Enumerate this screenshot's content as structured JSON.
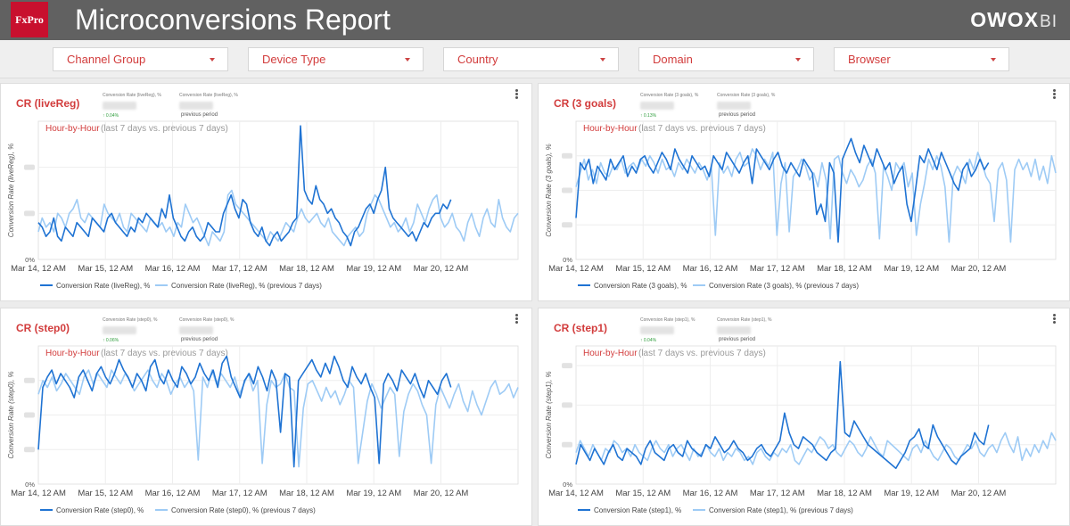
{
  "header": {
    "brand": "FxPro",
    "title": "Microconversions Report",
    "vendor": "OWOX",
    "vendor_suffix": "BI"
  },
  "filters": [
    {
      "label": "Channel Group"
    },
    {
      "label": "Device Type"
    },
    {
      "label": "Country"
    },
    {
      "label": "Domain"
    },
    {
      "label": "Browser"
    }
  ],
  "colors": {
    "accent": "#d23c3c",
    "header_bg": "#616161",
    "current_series": "#1f73d3",
    "previous_series": "#9ecbf5"
  },
  "icons": {
    "menu": "kebab-menu-icon",
    "dropdown": "chevron-down-icon"
  },
  "panels": [
    {
      "title": "CR (liveReg)",
      "kpi1_label": "Conversion Rate (liveReg), %",
      "kpi1_delta": "↑ 0.04%",
      "kpi2_label": "Conversion Rate (liveReg), %",
      "kpi2_sub": "previous period",
      "subtitle_main": "Hour-by-Hour",
      "subtitle_note": "(last 7 days vs. previous 7 days)",
      "ylabel": "Conversion Rate (liveReg), %",
      "legend_current": "Conversion Rate (liveReg), %",
      "legend_previous": "Conversion Rate (liveReg), % (previous 7 days)"
    },
    {
      "title": "CR (3 goals)",
      "kpi1_label": "Conversion Rate (3 goals), %",
      "kpi1_delta": "↑ 0.13%",
      "kpi2_label": "Conversion Rate (3 goals), %",
      "kpi2_sub": "previous period",
      "subtitle_main": "Hour-by-Hour",
      "subtitle_note": "(last 7 days vs. previous 7 days)",
      "ylabel": "Conversion Rate (3 goals), %",
      "legend_current": "Conversion Rate (3 goals), %",
      "legend_previous": "Conversion Rate (3 goals), % (previous 7 days)"
    },
    {
      "title": "CR (step0)",
      "kpi1_label": "Conversion Rate (step0), %",
      "kpi1_delta": "↑ 0.06%",
      "kpi2_label": "Conversion Rate (step0), %",
      "kpi2_sub": "previous period",
      "subtitle_main": "Hour-by-Hour",
      "subtitle_note": "(last 7 days vs. previous 7 days)",
      "ylabel": "Conversion Rate (step0), %",
      "legend_current": "Conversion Rate (step0), %",
      "legend_previous": "Conversion Rate (step0), % (previous 7 days)"
    },
    {
      "title": "CR (step1)",
      "kpi1_label": "Conversion Rate (step1), %",
      "kpi1_delta": "↑ 0.04%",
      "kpi2_label": "Conversion Rate (step1), %",
      "kpi2_sub": "previous period",
      "subtitle_main": "Hour-by-Hour",
      "subtitle_note": "(last 7 days vs. previous 7 days)",
      "ylabel": "Conversion Rate (step1), %",
      "legend_current": "Conversion Rate (step1), %",
      "legend_previous": "Conversion Rate (step1), % (previous 7 days)"
    }
  ],
  "chart_data": [
    {
      "type": "line",
      "x_ticks": [
        "Mar 14, 12 AM",
        "Mar 15, 12 AM",
        "Mar 16, 12 AM",
        "Mar 17, 12 AM",
        "Mar 18, 12 AM",
        "Mar 19, 12 AM",
        "Mar 20, 12 AM"
      ],
      "y_ticks": [
        "0%"
      ],
      "ylim": [
        0,
        3
      ],
      "series": [
        {
          "name": "Conversion Rate (liveReg), %",
          "values": [
            0.8,
            0.7,
            0.5,
            0.6,
            0.9,
            0.5,
            0.4,
            0.7,
            0.6,
            0.5,
            0.8,
            0.7,
            0.6,
            0.5,
            0.9,
            0.8,
            0.7,
            0.6,
            0.9,
            1.0,
            0.8,
            0.7,
            0.6,
            0.5,
            0.7,
            0.6,
            0.9,
            0.8,
            1.0,
            0.9,
            0.8,
            0.7,
            1.1,
            0.9,
            1.4,
            0.9,
            0.7,
            0.5,
            0.4,
            0.6,
            0.7,
            0.5,
            0.4,
            0.5,
            0.8,
            0.7,
            0.6,
            0.6,
            1.0,
            1.2,
            1.4,
            1.1,
            0.9,
            1.3,
            1.2,
            0.8,
            0.6,
            0.5,
            0.7,
            0.4,
            0.3,
            0.5,
            0.6,
            0.4,
            0.5,
            0.6,
            0.8,
            0.9,
            2.9,
            1.5,
            1.3,
            1.2,
            1.6,
            1.3,
            1.2,
            1.0,
            1.1,
            0.9,
            0.8,
            0.6,
            0.5,
            0.3,
            0.6,
            0.7,
            0.9,
            1.1,
            1.2,
            1.0,
            1.3,
            1.5,
            2.0,
            1.1,
            0.9,
            0.8,
            0.7,
            0.6,
            0.5,
            0.6,
            0.4,
            0.6,
            0.8,
            0.7,
            0.9,
            1.0,
            1.0,
            1.2,
            1.1,
            1.3
          ]
        },
        {
          "name": "Conversion Rate (liveReg), % (previous 7 days)",
          "values": [
            0.6,
            0.9,
            0.7,
            0.8,
            0.6,
            1.0,
            0.9,
            0.7,
            1.0,
            1.1,
            1.3,
            0.9,
            0.8,
            1.0,
            0.9,
            0.8,
            0.7,
            1.2,
            1.0,
            0.9,
            0.8,
            1.0,
            0.7,
            0.6,
            1.0,
            0.9,
            0.8,
            0.7,
            0.6,
            0.9,
            0.8,
            0.7,
            0.8,
            0.6,
            0.7,
            0.5,
            0.8,
            0.7,
            1.2,
            1.0,
            0.8,
            0.9,
            0.7,
            0.5,
            0.3,
            0.6,
            0.5,
            0.4,
            0.6,
            1.4,
            1.5,
            1.2,
            1.1,
            1.0,
            0.9,
            0.8,
            0.7,
            0.6,
            0.5,
            0.4,
            0.6,
            0.5,
            0.4,
            0.6,
            0.8,
            0.7,
            0.6,
            0.9,
            1.1,
            0.9,
            0.8,
            0.9,
            1.0,
            0.8,
            0.7,
            0.9,
            0.6,
            0.5,
            0.4,
            0.3,
            0.5,
            0.6,
            0.7,
            0.5,
            0.6,
            1.0,
            1.2,
            1.4,
            1.3,
            1.1,
            0.9,
            0.7,
            0.8,
            0.6,
            0.7,
            0.9,
            0.6,
            0.8,
            1.2,
            1.0,
            0.8,
            1.1,
            1.3,
            1.4,
            0.9,
            0.7,
            0.8,
            1.0,
            0.7,
            0.6,
            0.4,
            0.8,
            1.0,
            0.7,
            0.5,
            0.9,
            1.1,
            0.8,
            0.7,
            1.3,
            0.9,
            0.7,
            0.6,
            0.9,
            1.0
          ]
        }
      ]
    },
    {
      "type": "line",
      "x_ticks": [
        "Mar 14, 12 AM",
        "Mar 15, 12 AM",
        "Mar 16, 12 AM",
        "Mar 17, 12 AM",
        "Mar 18, 12 AM",
        "Mar 19, 12 AM",
        "Mar 20, 12 AM"
      ],
      "y_ticks": [
        "0%"
      ],
      "ylim": [
        0,
        4
      ],
      "series": [
        {
          "name": "Conversion Rate (3 goals), %",
          "values": [
            1.2,
            2.8,
            2.6,
            2.9,
            2.2,
            2.7,
            2.5,
            2.3,
            2.9,
            2.6,
            2.8,
            3.0,
            2.4,
            2.7,
            2.5,
            2.9,
            3.0,
            2.7,
            2.5,
            2.8,
            3.1,
            2.9,
            2.6,
            3.2,
            2.9,
            2.7,
            2.5,
            3.0,
            2.8,
            2.6,
            2.7,
            2.4,
            3.0,
            2.8,
            2.6,
            3.1,
            2.9,
            2.7,
            2.5,
            2.8,
            3.0,
            2.2,
            3.2,
            3.0,
            2.8,
            2.6,
            2.9,
            3.1,
            2.7,
            2.5,
            2.8,
            2.6,
            2.4,
            2.9,
            2.7,
            2.5,
            1.3,
            1.6,
            1.1,
            2.8,
            2.5,
            0.5,
            2.9,
            3.2,
            3.5,
            3.1,
            2.8,
            3.3,
            3.0,
            2.7,
            3.2,
            2.9,
            2.6,
            2.8,
            2.2,
            2.5,
            2.7,
            1.6,
            1.1,
            2.0,
            3.0,
            2.8,
            3.2,
            2.9,
            2.6,
            3.1,
            2.8,
            2.5,
            2.2,
            2.0,
            2.6,
            2.8,
            2.4,
            2.6,
            2.9,
            2.6,
            2.8
          ]
        },
        {
          "name": "Conversion Rate (3 goals), % (previous 7 days)",
          "values": [
            2.1,
            2.5,
            2.9,
            2.3,
            2.6,
            2.2,
            2.8,
            2.5,
            2.4,
            2.7,
            2.6,
            2.9,
            2.5,
            2.7,
            2.8,
            2.6,
            2.9,
            2.7,
            3.0,
            2.8,
            2.5,
            2.9,
            2.6,
            2.7,
            2.4,
            2.8,
            2.6,
            2.9,
            2.7,
            2.5,
            2.8,
            2.6,
            2.3,
            2.7,
            0.7,
            2.8,
            2.5,
            2.7,
            2.4,
            2.9,
            3.1,
            2.7,
            2.8,
            3.2,
            3.0,
            2.6,
            2.9,
            2.7,
            3.1,
            0.7,
            2.2,
            2.8,
            0.8,
            2.4,
            2.6,
            2.9,
            2.7,
            2.3,
            2.5,
            2.1,
            2.8,
            2.3,
            0.6,
            2.9,
            3.0,
            2.5,
            2.2,
            2.6,
            2.4,
            2.1,
            2.3,
            2.7,
            2.9,
            2.5,
            0.6,
            2.7,
            2.4,
            2.0,
            2.8,
            2.6,
            2.8,
            2.1,
            2.5,
            0.7,
            1.6,
            2.2,
            2.9,
            2.6,
            3.0,
            2.7,
            2.1,
            0.5,
            2.4,
            2.7,
            2.5,
            2.2,
            2.9,
            2.6,
            3.1,
            2.8,
            2.4,
            2.2,
            1.1,
            2.6,
            2.8,
            2.3,
            0.5,
            2.6,
            2.9,
            2.6,
            2.8,
            2.4,
            2.9,
            2.3,
            2.7,
            2.2,
            3.0,
            2.5
          ]
        }
      ]
    },
    {
      "type": "line",
      "x_ticks": [
        "Mar 14, 12 AM",
        "Mar 15, 12 AM",
        "Mar 16, 12 AM",
        "Mar 17, 12 AM",
        "Mar 18, 12 AM",
        "Mar 19, 12 AM",
        "Mar 20, 12 AM"
      ],
      "y_ticks": [
        "0%"
      ],
      "ylim": [
        0,
        4
      ],
      "series": [
        {
          "name": "Conversion Rate (step0), %",
          "values": [
            1.0,
            2.8,
            3.1,
            3.3,
            2.9,
            3.2,
            3.0,
            2.8,
            2.5,
            3.1,
            3.3,
            3.0,
            2.7,
            3.2,
            3.4,
            3.1,
            2.9,
            3.2,
            3.6,
            3.3,
            3.1,
            2.8,
            3.2,
            3.0,
            2.7,
            3.4,
            3.6,
            3.1,
            2.9,
            3.3,
            3.0,
            2.8,
            3.4,
            3.2,
            2.9,
            3.1,
            3.5,
            3.2,
            3.0,
            3.3,
            2.8,
            3.5,
            3.7,
            3.1,
            2.8,
            2.5,
            3.0,
            3.2,
            2.9,
            3.4,
            3.1,
            2.7,
            3.3,
            3.0,
            1.5,
            3.2,
            3.1,
            0.5,
            3.0,
            3.2,
            3.4,
            3.6,
            3.3,
            3.1,
            3.5,
            3.2,
            3.7,
            3.4,
            3.0,
            2.8,
            3.4,
            3.1,
            2.9,
            3.2,
            2.8,
            2.5,
            0.6,
            2.9,
            3.2,
            3.0,
            2.7,
            3.3,
            3.1,
            2.9,
            3.2,
            2.8,
            2.5,
            3.0,
            2.8,
            2.6,
            3.0,
            3.2,
            2.8
          ]
        },
        {
          "name": "Conversion Rate (step0), % (previous 7 days)",
          "values": [
            2.6,
            3.0,
            2.8,
            3.1,
            2.7,
            2.9,
            3.2,
            3.0,
            2.8,
            2.6,
            3.1,
            3.3,
            2.9,
            3.2,
            3.0,
            2.8,
            3.3,
            3.1,
            2.9,
            3.2,
            3.0,
            2.7,
            2.9,
            3.1,
            3.3,
            3.0,
            2.8,
            3.2,
            3.0,
            2.6,
            2.9,
            3.1,
            2.8,
            3.0,
            2.7,
            0.7,
            3.1,
            2.8,
            3.3,
            2.9,
            3.2,
            3.0,
            2.8,
            3.1,
            2.6,
            2.9,
            3.2,
            2.7,
            3.0,
            0.6,
            2.3,
            3.0,
            2.8,
            2.9,
            3.2,
            2.8,
            2.7,
            0.5,
            2.2,
            2.9,
            3.0,
            2.7,
            2.4,
            2.8,
            2.5,
            2.7,
            2.3,
            2.6,
            3.0,
            2.8,
            0.6,
            1.5,
            2.4,
            2.9,
            2.6,
            2.2,
            2.5,
            2.8,
            2.6,
            0.8,
            2.1,
            2.6,
            2.9,
            2.7,
            2.3,
            2.0,
            0.6,
            2.3,
            2.8,
            2.5,
            2.2,
            2.6,
            2.9,
            2.4,
            2.1,
            2.7,
            2.3,
            2.0,
            2.4,
            2.8,
            3.0,
            2.6,
            2.7,
            2.9,
            2.5,
            2.8
          ]
        }
      ]
    },
    {
      "type": "line",
      "x_ticks": [
        "Mar 14, 12 AM",
        "Mar 15, 12 AM",
        "Mar 16, 12 AM",
        "Mar 17, 12 AM",
        "Mar 18, 12 AM",
        "Mar 19, 12 AM",
        "Mar 20, 12 AM"
      ],
      "y_ticks": [
        "0%"
      ],
      "ylim": [
        0,
        3.5
      ],
      "series": [
        {
          "name": "Conversion Rate (step1), %",
          "values": [
            0.5,
            1.0,
            0.8,
            0.6,
            0.9,
            0.7,
            0.5,
            0.8,
            1.0,
            0.7,
            0.6,
            0.9,
            0.8,
            0.7,
            0.5,
            0.9,
            1.1,
            0.8,
            0.7,
            0.6,
            0.9,
            1.0,
            0.8,
            0.7,
            1.1,
            0.9,
            0.8,
            0.7,
            1.0,
            0.9,
            1.2,
            1.0,
            0.8,
            0.9,
            1.1,
            0.9,
            0.8,
            0.6,
            0.7,
            0.9,
            1.0,
            0.8,
            0.7,
            0.9,
            1.1,
            1.8,
            1.3,
            1.0,
            0.9,
            1.2,
            1.1,
            1.0,
            0.8,
            0.7,
            0.6,
            0.8,
            0.9,
            3.1,
            1.3,
            1.2,
            1.6,
            1.4,
            1.2,
            1.0,
            0.9,
            0.8,
            0.7,
            0.6,
            0.5,
            0.4,
            0.6,
            0.8,
            1.1,
            1.2,
            1.4,
            1.0,
            0.9,
            1.5,
            1.2,
            1.0,
            0.8,
            0.6,
            0.5,
            0.7,
            0.8,
            0.9,
            1.3,
            1.1,
            1.0,
            1.5
          ]
        },
        {
          "name": "Conversion Rate (step1), % (previous 7 days)",
          "values": [
            0.8,
            1.1,
            0.9,
            0.7,
            1.0,
            0.8,
            0.6,
            0.9,
            0.8,
            1.1,
            1.0,
            0.8,
            0.9,
            0.7,
            1.0,
            0.8,
            0.7,
            0.6,
            0.9,
            1.1,
            0.9,
            0.8,
            1.0,
            0.7,
            0.9,
            1.0,
            0.8,
            0.6,
            0.9,
            0.7,
            0.8,
            1.0,
            0.8,
            0.7,
            0.9,
            0.6,
            0.8,
            0.7,
            0.9,
            0.8,
            0.6,
            0.7,
            0.5,
            0.8,
            0.9,
            0.7,
            0.6,
            0.8,
            0.7,
            0.9,
            0.8,
            1.0,
            0.6,
            0.5,
            0.7,
            0.9,
            0.8,
            1.0,
            1.2,
            1.1,
            0.9,
            1.0,
            0.8,
            0.7,
            0.9,
            1.1,
            1.0,
            0.8,
            0.7,
            0.9,
            1.2,
            1.0,
            0.8,
            0.7,
            1.1,
            1.0,
            0.9,
            0.8,
            0.7,
            0.6,
            0.9,
            1.0,
            0.8,
            1.1,
            0.9,
            0.7,
            0.6,
            0.8,
            1.0,
            0.9,
            0.7,
            0.6,
            0.8,
            1.0,
            0.9,
            1.1,
            0.8,
            0.7,
            0.9,
            1.0,
            0.8,
            1.1,
            1.3,
            1.0,
            0.8,
            1.2,
            0.6,
            0.9,
            0.7,
            1.0,
            0.8,
            1.1,
            0.9,
            1.3,
            1.1
          ]
        }
      ]
    }
  ]
}
